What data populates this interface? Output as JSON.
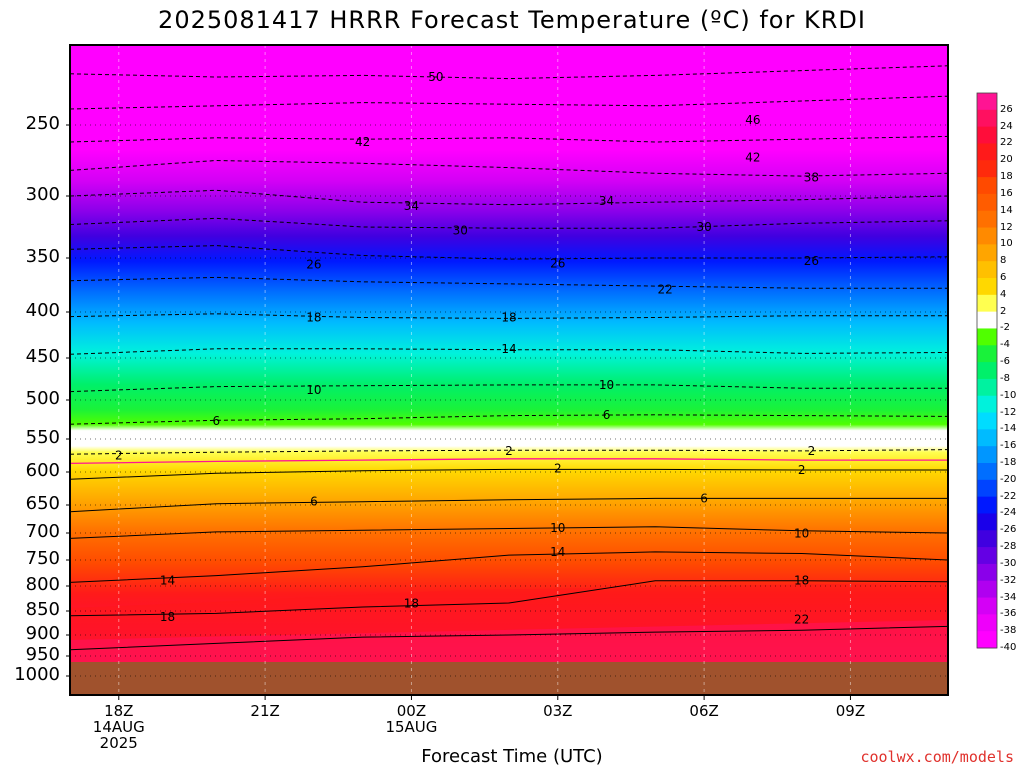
{
  "title": "2025081417 HRRR Forecast Temperature (ºC) for KRDI",
  "xlabel": "Forecast Time (UTC)",
  "credit": "coolwx.com/models",
  "chart_data": {
    "type": "heatmap",
    "title": "2025081417 HRRR Forecast Temperature (ºC) for KRDI",
    "xlabel": "Forecast Time (UTC)",
    "ylabel": "",
    "x_ticks": [
      "18Z",
      "21Z",
      "00Z",
      "03Z",
      "06Z",
      "09Z"
    ],
    "x_tick_sub": [
      [
        "14AUG",
        "2025"
      ],
      [],
      [
        "15AUG"
      ],
      [],
      [],
      []
    ],
    "x_range_hours": [
      -1,
      17
    ],
    "y_ticks": [
      250,
      300,
      350,
      400,
      450,
      500,
      550,
      600,
      650,
      700,
      750,
      800,
      850,
      900,
      950,
      1000
    ],
    "y_axis": "pressure (hPa), decreasing upward",
    "colorbar_labels": [
      26,
      24,
      22,
      20,
      18,
      16,
      14,
      12,
      10,
      8,
      6,
      4,
      2,
      -2,
      -4,
      -6,
      -8,
      -10,
      -12,
      -14,
      -16,
      -18,
      -20,
      -22,
      -24,
      -26,
      -28,
      -30,
      -32,
      -34,
      -36,
      -38,
      -40
    ],
    "colorbar_colors": [
      "#ff1493",
      "#ff1060",
      "#ff0d3a",
      "#ff1a1a",
      "#ff2a0c",
      "#ff4a00",
      "#ff5c00",
      "#ff7000",
      "#ff8a00",
      "#ffa500",
      "#ffc000",
      "#ffd800",
      "#ffff50",
      "#ffffff",
      "#50ff00",
      "#19f23a",
      "#00f06a",
      "#00f2a0",
      "#00f2dc",
      "#00dcff",
      "#00bbff",
      "#0096ff",
      "#006eff",
      "#0044ff",
      "#0018ff",
      "#1a00ea",
      "#4000e0",
      "#6400e4",
      "#8a00ea",
      "#b000f0",
      "#d400f6",
      "#ee00fa",
      "#ff00ff"
    ],
    "contour_labels": [
      {
        "text": "50",
        "hour": 6.5,
        "p": 220
      },
      {
        "text": "42",
        "hour": 5,
        "p": 262
      },
      {
        "text": "46",
        "hour": 13,
        "p": 247
      },
      {
        "text": "42",
        "hour": 13,
        "p": 273
      },
      {
        "text": "38",
        "hour": 14.2,
        "p": 287
      },
      {
        "text": "34",
        "hour": 6,
        "p": 308
      },
      {
        "text": "34",
        "hour": 10,
        "p": 304
      },
      {
        "text": "30",
        "hour": 7,
        "p": 328
      },
      {
        "text": "30",
        "hour": 12,
        "p": 325
      },
      {
        "text": "26",
        "hour": 4,
        "p": 356
      },
      {
        "text": "26",
        "hour": 9,
        "p": 355
      },
      {
        "text": "26",
        "hour": 14.2,
        "p": 353
      },
      {
        "text": "22",
        "hour": 11.2,
        "p": 379
      },
      {
        "text": "18",
        "hour": 4,
        "p": 406
      },
      {
        "text": "18",
        "hour": 8,
        "p": 406
      },
      {
        "text": "14",
        "hour": 8,
        "p": 440
      },
      {
        "text": "10",
        "hour": 4,
        "p": 488
      },
      {
        "text": "10",
        "hour": 10,
        "p": 482
      },
      {
        "text": "6",
        "hour": 2,
        "p": 527
      },
      {
        "text": "6",
        "hour": 10,
        "p": 519
      },
      {
        "text": "2",
        "hour": 0,
        "p": 575
      },
      {
        "text": "2",
        "hour": 8,
        "p": 568
      },
      {
        "text": "2",
        "hour": 14.2,
        "p": 568
      },
      {
        "text": "2",
        "hour": 9,
        "p": 595
      },
      {
        "text": "2",
        "hour": 14,
        "p": 597
      },
      {
        "text": "6",
        "hour": 4,
        "p": 645
      },
      {
        "text": "6",
        "hour": 12,
        "p": 640
      },
      {
        "text": "10",
        "hour": 9,
        "p": 691
      },
      {
        "text": "10",
        "hour": 14,
        "p": 701
      },
      {
        "text": "14",
        "hour": 9,
        "p": 735
      },
      {
        "text": "14",
        "hour": 1,
        "p": 789
      },
      {
        "text": "18",
        "hour": 1,
        "p": 862
      },
      {
        "text": "18",
        "hour": 6,
        "p": 835
      },
      {
        "text": "18",
        "hour": 14,
        "p": 789
      },
      {
        "text": "22",
        "hour": 14,
        "p": 868
      }
    ]
  }
}
